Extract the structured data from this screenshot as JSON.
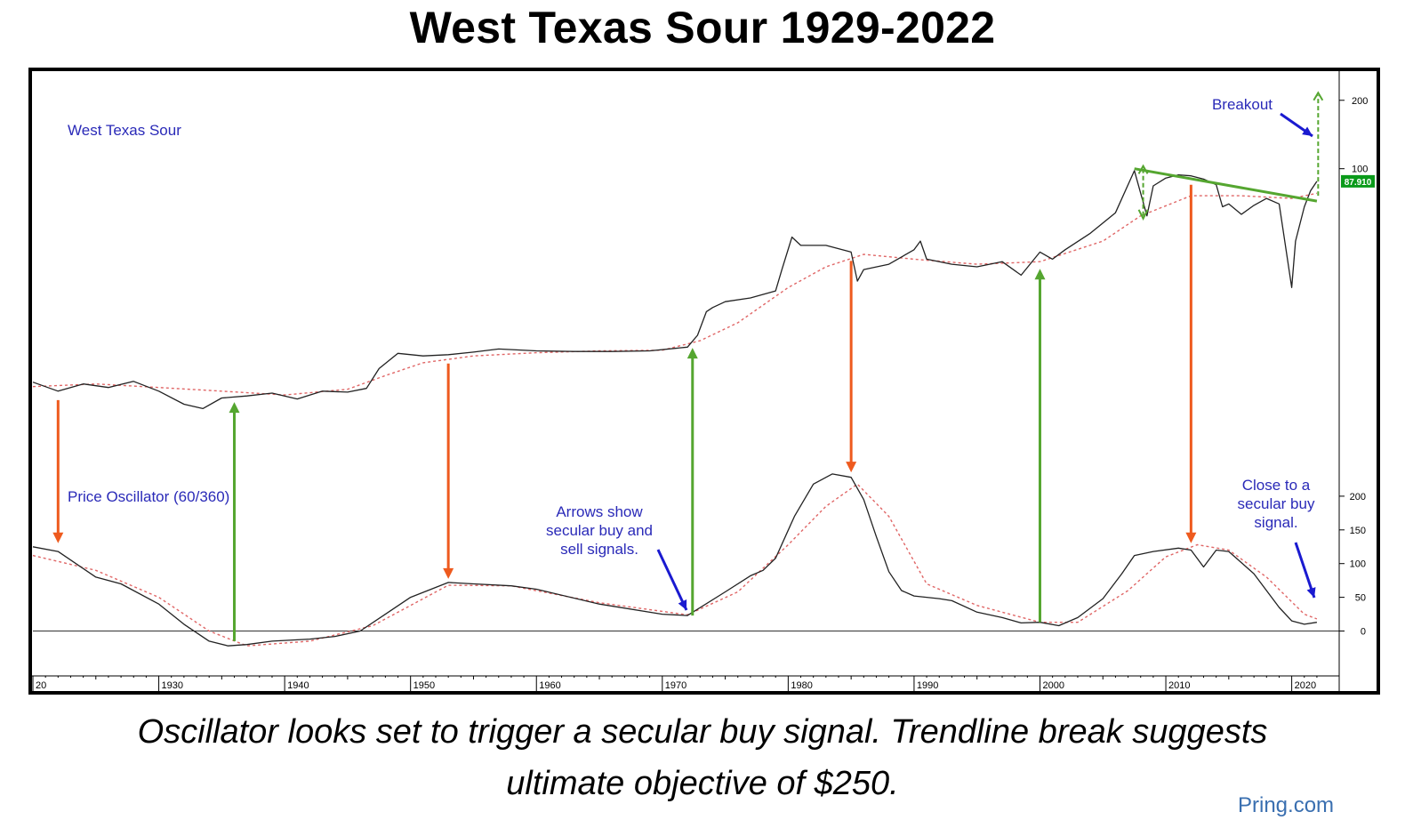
{
  "page": {
    "title": "West Texas Sour 1929-2022",
    "caption_line_1": "Oscillator looks set to trigger a secular buy signal. Trendline break suggests",
    "caption_line_2": "ultimate objective of $250.",
    "source": "Pring.com"
  },
  "colors": {
    "price": "#222222",
    "moving_average": "#e06666",
    "sell_arrow": "#ee5a1e",
    "buy_arrow": "#55a630",
    "annotation_text": "#2a2ab8",
    "annotation_arrow": "#1a1ad0",
    "trendline": "#55a630",
    "price_tag_bg": "#0a9a1a"
  },
  "chart_data": [
    {
      "type": "line",
      "title": "West Texas Sour",
      "price_tag": "87.910",
      "log_scale": true,
      "right_axis_ticks": [
        "200",
        "100"
      ],
      "ylim": [
        8,
        250
      ],
      "series": [
        {
          "name": "West Texas Sour",
          "x": [
            1920.0,
            1922.0,
            1924.0,
            1926.0,
            1928.0,
            1930.0,
            1932.0,
            1933.5,
            1935.0,
            1937.0,
            1939.0,
            1941.0,
            1943.0,
            1945.0,
            1946.5,
            1947.5,
            1949.0,
            1951.0,
            1953.0,
            1955.0,
            1957.0,
            1960.0,
            1963.0,
            1966.0,
            1969.0,
            1972.0,
            1972.8,
            1973.5,
            1974.0,
            1975.0,
            1977.0,
            1979.0,
            1979.5,
            1980.3,
            1981.0,
            1983.0,
            1985.0,
            1985.5,
            1986.0,
            1988.0,
            1990.0,
            1990.5,
            1991.0,
            1993.0,
            1995.0,
            1997.0,
            1998.5,
            2000.0,
            2001.0,
            2002.0,
            2004.0,
            2006.0,
            2007.5,
            2008.5,
            2009.0,
            2010.0,
            2011.0,
            2012.0,
            2013.0,
            2014.0,
            2014.5,
            2015.0,
            2016.0,
            2017.0,
            2018.0,
            2019.0,
            2020.0,
            2020.3,
            2021.0,
            2021.5,
            2022.0
          ],
          "y": [
            11.5,
            10.5,
            11.3,
            10.9,
            11.6,
            10.5,
            9.2,
            8.8,
            9.8,
            10.0,
            10.3,
            9.7,
            10.5,
            10.4,
            10.8,
            13.2,
            15.4,
            15.0,
            15.2,
            15.6,
            16.1,
            15.8,
            15.7,
            15.7,
            15.8,
            16.4,
            18.5,
            23.5,
            24.5,
            26.0,
            27.0,
            29.0,
            36.0,
            50.0,
            46.0,
            46.0,
            43.0,
            32.0,
            36.0,
            38.0,
            44.0,
            48.0,
            40.0,
            38.0,
            37.0,
            39.0,
            34.0,
            43.0,
            40.0,
            44.0,
            52.0,
            64.0,
            98.0,
            62.0,
            84.0,
            91.0,
            94.0,
            93.0,
            90.0,
            85.0,
            68.0,
            70.0,
            63.0,
            69.0,
            74.0,
            70.0,
            30.0,
            48.0,
            68.0,
            80.0,
            88.0
          ]
        },
        {
          "name": "Moving Average",
          "x": [
            1920.0,
            1925.0,
            1930.0,
            1935.0,
            1940.0,
            1945.0,
            1948.0,
            1951.0,
            1955.0,
            1960.0,
            1965.0,
            1970.0,
            1973.0,
            1976.0,
            1980.0,
            1983.0,
            1986.0,
            1990.0,
            1995.0,
            2000.0,
            2005.0,
            2008.0,
            2012.0,
            2016.0,
            2020.0,
            2022.0
          ],
          "y": [
            11.0,
            11.3,
            10.9,
            10.5,
            10.1,
            10.7,
            12.3,
            14.0,
            15.0,
            15.5,
            15.8,
            15.9,
            17.5,
            21.0,
            30.0,
            37.0,
            42.0,
            40.0,
            38.0,
            39.0,
            48.0,
            62.0,
            76.0,
            76.0,
            74.0,
            78.0
          ]
        }
      ]
    },
    {
      "type": "line",
      "title": "Price Oscillator (60/360)",
      "right_axis_ticks": [
        "200",
        "150",
        "100",
        "50",
        "0"
      ],
      "ylim": [
        -60,
        250
      ],
      "xlim": [
        1920,
        2022.5
      ],
      "x_tick_labels": [
        "20",
        "1930",
        "1940",
        "1950",
        "1960",
        "1970",
        "1980",
        "1990",
        "2000",
        "2010",
        "2020"
      ],
      "series": [
        {
          "name": "Price Oscillator",
          "x": [
            1920.0,
            1922.0,
            1925.0,
            1927.0,
            1930.0,
            1932.0,
            1934.0,
            1935.5,
            1937.0,
            1939.0,
            1942.0,
            1944.0,
            1946.0,
            1948.0,
            1950.0,
            1953.0,
            1955.0,
            1958.0,
            1960.0,
            1965.0,
            1970.0,
            1972.0,
            1975.0,
            1977.0,
            1978.0,
            1979.0,
            1980.5,
            1982.0,
            1983.5,
            1985.0,
            1986.0,
            1987.0,
            1988.0,
            1989.0,
            1990.0,
            1992.0,
            1993.0,
            1995.0,
            1997.0,
            1998.5,
            2000.0,
            2001.5,
            2003.0,
            2005.0,
            2006.5,
            2007.5,
            2009.0,
            2011.0,
            2012.0,
            2013.0,
            2014.0,
            2015.0,
            2017.0,
            2019.0,
            2020.0,
            2021.0,
            2022.0
          ],
          "y": [
            125.0,
            118.0,
            80.0,
            70.0,
            40.0,
            10.0,
            -15.0,
            -22.0,
            -20.0,
            -15.0,
            -12.0,
            -8.0,
            0.0,
            25.0,
            50.0,
            72.0,
            70.0,
            67.0,
            62.0,
            40.0,
            25.0,
            23.0,
            58.0,
            82.0,
            90.0,
            108.0,
            170.0,
            218.0,
            233.0,
            228.0,
            195.0,
            140.0,
            88.0,
            60.0,
            52.0,
            48.0,
            45.0,
            28.0,
            20.0,
            12.0,
            13.0,
            8.0,
            20.0,
            48.0,
            85.0,
            112.0,
            118.0,
            123.0,
            120.0,
            95.0,
            120.0,
            118.0,
            85.0,
            35.0,
            15.0,
            10.0,
            13.0
          ]
        },
        {
          "name": "Signal Line",
          "x": [
            1920.0,
            1925.0,
            1930.0,
            1934.0,
            1937.0,
            1942.0,
            1947.0,
            1953.0,
            1958.0,
            1965.0,
            1972.0,
            1976.0,
            1980.0,
            1983.0,
            1985.5,
            1988.0,
            1991.0,
            1995.0,
            2000.0,
            2003.0,
            2007.0,
            2010.0,
            2012.5,
            2015.0,
            2018.0,
            2021.0,
            2022.0
          ],
          "y": [
            112.0,
            90.0,
            50.0,
            0.0,
            -22.0,
            -15.0,
            8.0,
            68.0,
            67.0,
            42.0,
            24.0,
            58.0,
            128.0,
            185.0,
            218.0,
            170.0,
            70.0,
            38.0,
            13.0,
            13.0,
            60.0,
            110.0,
            128.0,
            120.0,
            80.0,
            25.0,
            18.0
          ]
        }
      ]
    }
  ],
  "annotations": {
    "main_label": "West Texas Sour",
    "oscillator_label": "Price Oscillator (60/360)",
    "arrows_note": [
      "Arrows show",
      "secular buy and",
      "sell signals."
    ],
    "breakout": "Breakout",
    "close_note": [
      "Close to a",
      "secular buy",
      "signal."
    ]
  },
  "signals": [
    {
      "year": 1922,
      "kind": "sell"
    },
    {
      "year": 1936,
      "kind": "buy"
    },
    {
      "year": 1953,
      "kind": "sell"
    },
    {
      "year": 1972.4,
      "kind": "buy"
    },
    {
      "year": 1985,
      "kind": "sell"
    },
    {
      "year": 2000,
      "kind": "buy"
    },
    {
      "year": 2012,
      "kind": "sell"
    }
  ],
  "trendline": {
    "x": [
      2007.5,
      2022.0
    ],
    "y": [
      100.0,
      72.0
    ]
  }
}
